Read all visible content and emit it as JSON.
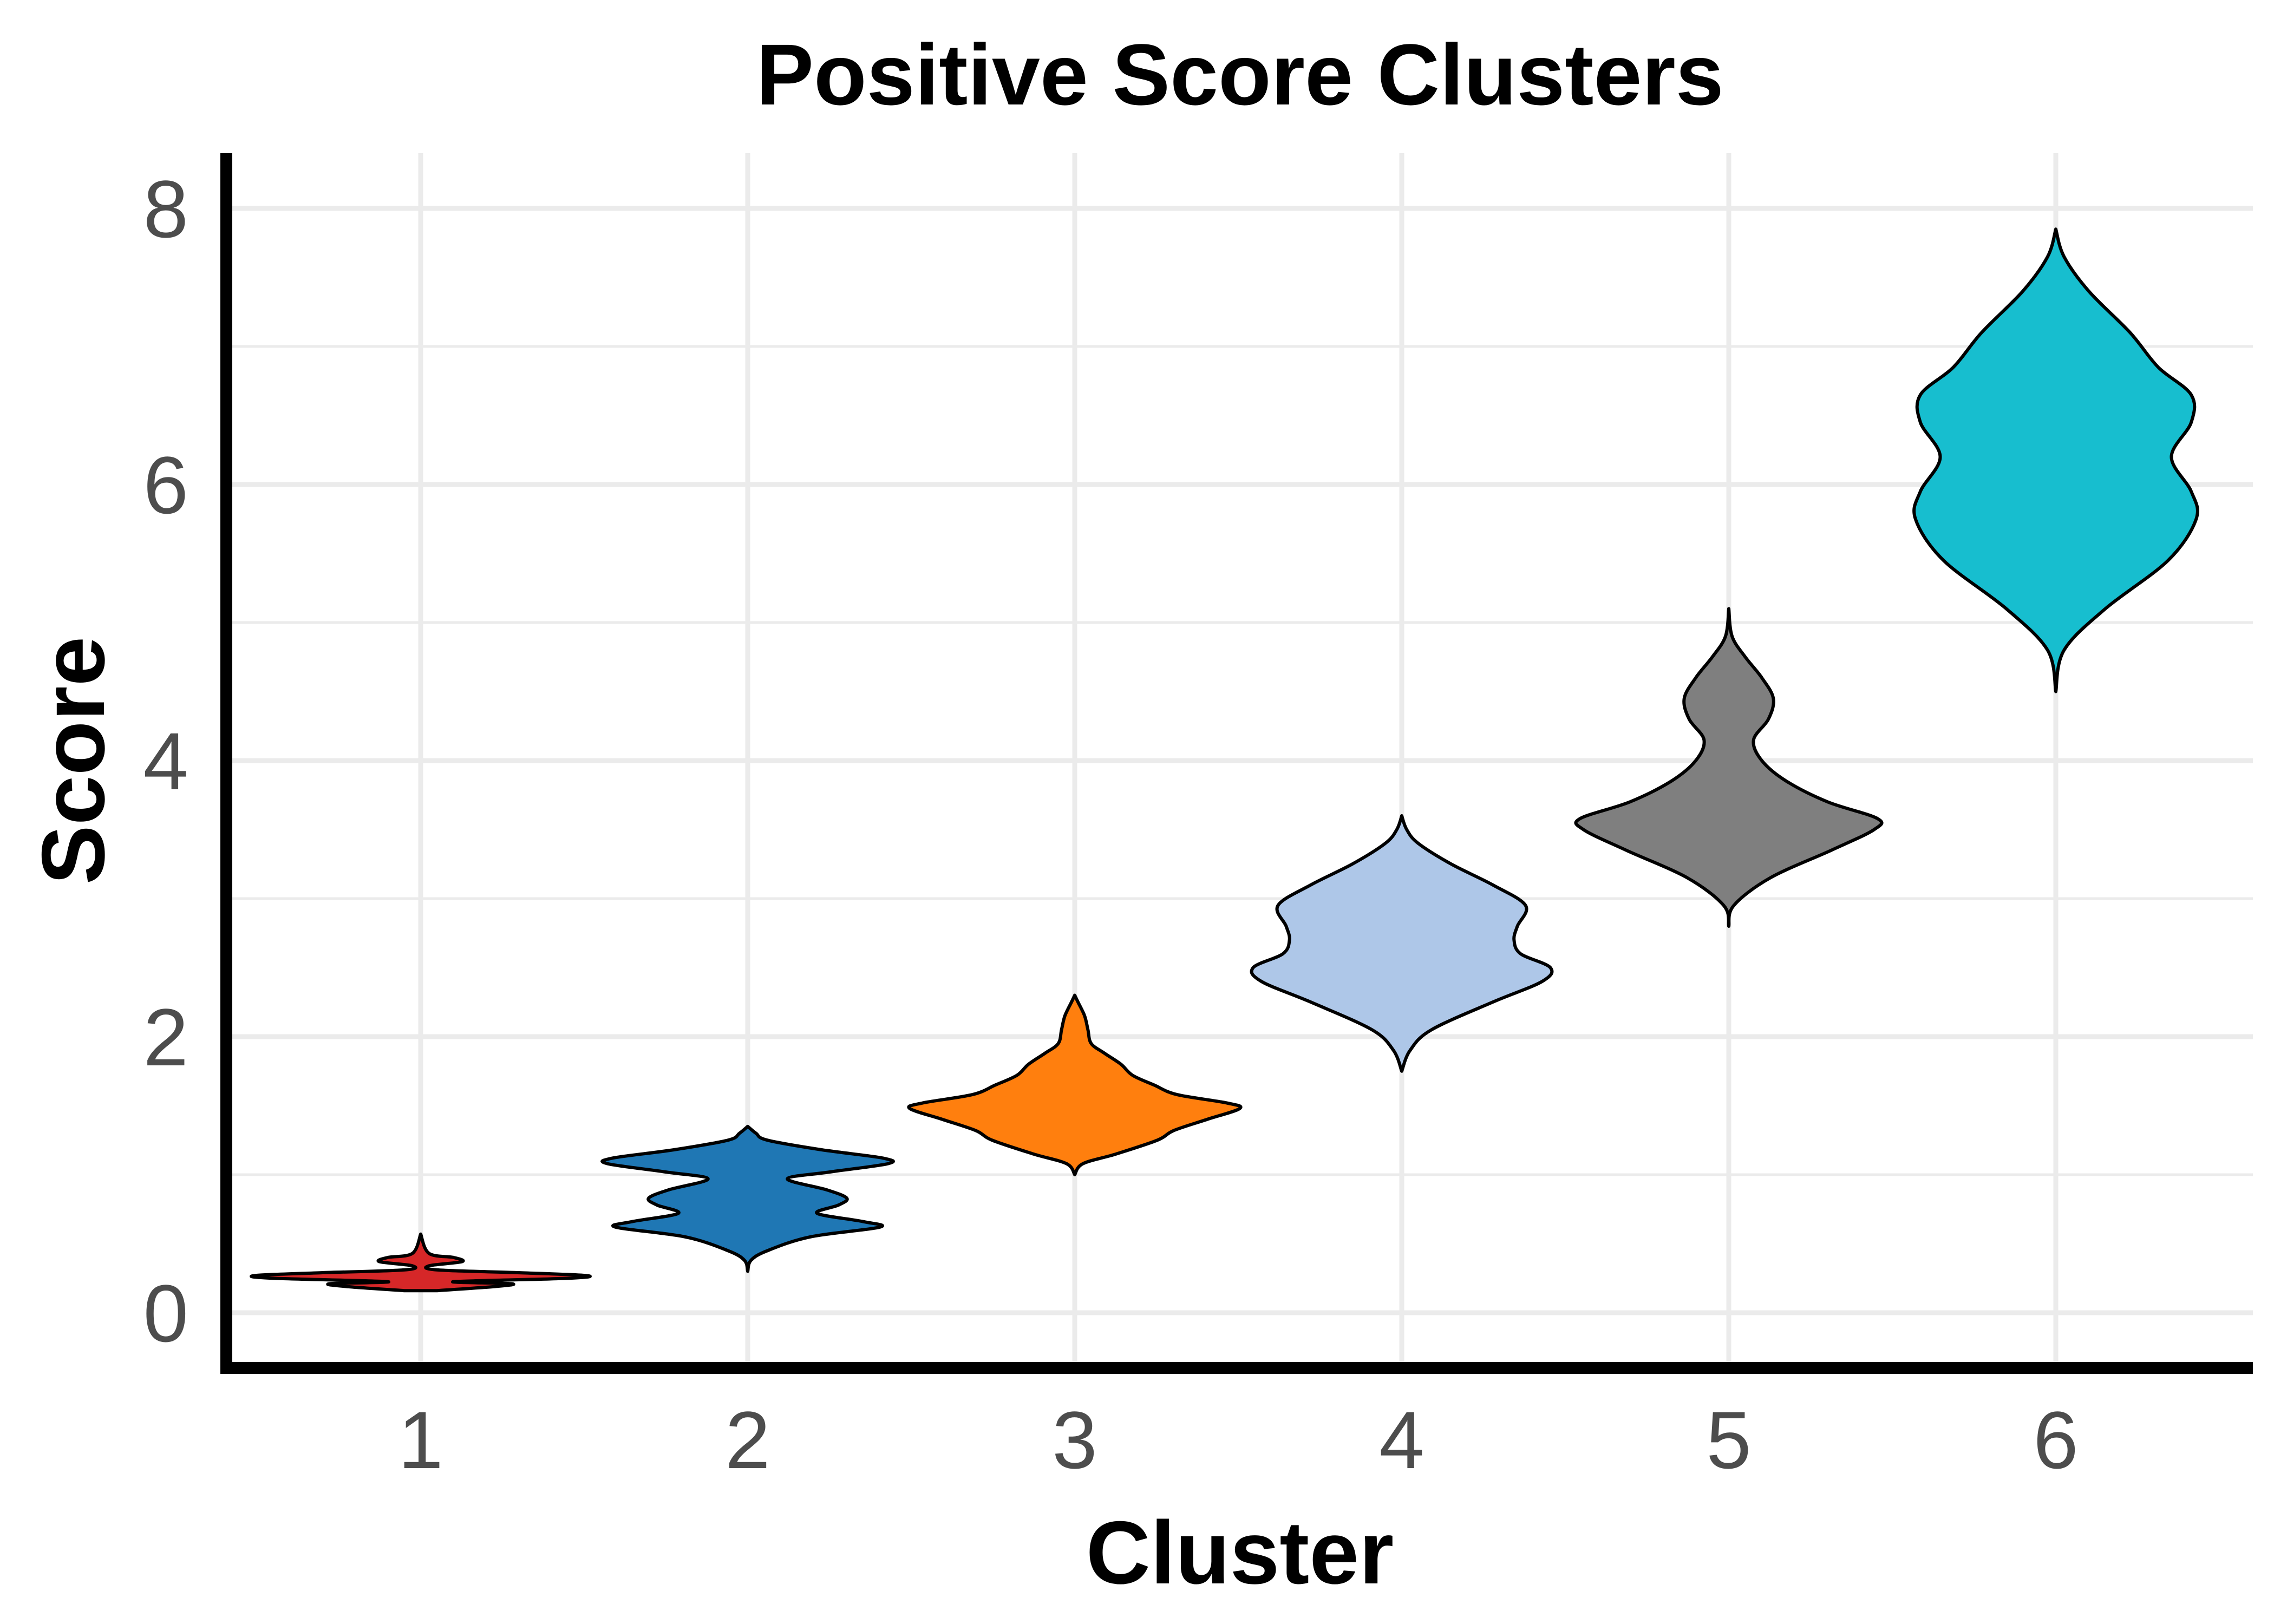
{
  "chart_data": {
    "type": "violin",
    "title": "Positive Score Clusters",
    "xlabel": "Cluster",
    "ylabel": "Score",
    "categories": [
      "1",
      "2",
      "3",
      "4",
      "5",
      "6"
    ],
    "y_ticks": [
      "0",
      "2",
      "4",
      "6",
      "8"
    ],
    "ylim": [
      -0.7,
      8.4
    ],
    "grid": true,
    "legend": "none",
    "series": [
      {
        "category": "1",
        "color": "#d62728",
        "min": 0.16,
        "max": 0.57,
        "median": 0.26,
        "profile": [
          [
            0.16,
            0.1
          ],
          [
            0.19,
            0.45
          ],
          [
            0.21,
            0.55
          ],
          [
            0.225,
            0.2
          ],
          [
            0.25,
            0.9
          ],
          [
            0.27,
            1.0
          ],
          [
            0.29,
            0.6
          ],
          [
            0.31,
            0.1
          ],
          [
            0.34,
            0.05
          ],
          [
            0.37,
            0.25
          ],
          [
            0.4,
            0.2
          ],
          [
            0.43,
            0.05
          ],
          [
            0.57,
            0.0
          ]
        ]
      },
      {
        "category": "2",
        "color": "#1f77b4",
        "min": 0.3,
        "max": 1.35,
        "median": 0.85,
        "profile": [
          [
            0.3,
            0.0
          ],
          [
            0.38,
            0.02
          ],
          [
            0.45,
            0.12
          ],
          [
            0.55,
            0.38
          ],
          [
            0.62,
            0.8
          ],
          [
            0.66,
            0.7
          ],
          [
            0.72,
            0.42
          ],
          [
            0.78,
            0.55
          ],
          [
            0.83,
            0.6
          ],
          [
            0.89,
            0.48
          ],
          [
            0.97,
            0.24
          ],
          [
            1.02,
            0.5
          ],
          [
            1.08,
            0.85
          ],
          [
            1.12,
            0.82
          ],
          [
            1.18,
            0.45
          ],
          [
            1.25,
            0.12
          ],
          [
            1.3,
            0.05
          ],
          [
            1.35,
            0.0
          ]
        ]
      },
      {
        "category": "3",
        "color": "#ff7f0e",
        "min": 1.0,
        "max": 2.3,
        "median": 1.55,
        "profile": [
          [
            1.0,
            0.0
          ],
          [
            1.08,
            0.05
          ],
          [
            1.15,
            0.25
          ],
          [
            1.25,
            0.5
          ],
          [
            1.32,
            0.6
          ],
          [
            1.4,
            0.8
          ],
          [
            1.48,
            1.0
          ],
          [
            1.52,
            0.92
          ],
          [
            1.58,
            0.62
          ],
          [
            1.65,
            0.48
          ],
          [
            1.72,
            0.35
          ],
          [
            1.8,
            0.28
          ],
          [
            1.88,
            0.18
          ],
          [
            1.95,
            0.1
          ],
          [
            2.05,
            0.08
          ],
          [
            2.15,
            0.06
          ],
          [
            2.25,
            0.02
          ],
          [
            2.3,
            0.0
          ]
        ]
      },
      {
        "category": "4",
        "color": "#aec7e8",
        "min": 1.75,
        "max": 3.6,
        "median": 2.7,
        "profile": [
          [
            1.75,
            0.0
          ],
          [
            1.9,
            0.05
          ],
          [
            2.05,
            0.18
          ],
          [
            2.25,
            0.55
          ],
          [
            2.4,
            0.85
          ],
          [
            2.5,
            0.9
          ],
          [
            2.6,
            0.72
          ],
          [
            2.7,
            0.68
          ],
          [
            2.8,
            0.7
          ],
          [
            2.95,
            0.75
          ],
          [
            3.1,
            0.55
          ],
          [
            3.25,
            0.3
          ],
          [
            3.4,
            0.1
          ],
          [
            3.5,
            0.03
          ],
          [
            3.6,
            0.0
          ]
        ]
      },
      {
        "category": "5",
        "color": "#7f7f7f",
        "min": 2.8,
        "max": 5.1,
        "median": 3.95,
        "profile": [
          [
            2.8,
            0.0
          ],
          [
            2.95,
            0.03
          ],
          [
            3.15,
            0.25
          ],
          [
            3.35,
            0.62
          ],
          [
            3.5,
            0.88
          ],
          [
            3.58,
            0.9
          ],
          [
            3.7,
            0.6
          ],
          [
            3.85,
            0.35
          ],
          [
            4.0,
            0.2
          ],
          [
            4.15,
            0.15
          ],
          [
            4.3,
            0.24
          ],
          [
            4.45,
            0.27
          ],
          [
            4.6,
            0.2
          ],
          [
            4.75,
            0.1
          ],
          [
            4.9,
            0.02
          ],
          [
            5.1,
            0.0
          ]
        ]
      },
      {
        "category": "6",
        "color": "#17becf",
        "min": 4.5,
        "max": 7.85,
        "median": 6.2,
        "profile": [
          [
            4.5,
            0.0
          ],
          [
            4.8,
            0.05
          ],
          [
            5.1,
            0.3
          ],
          [
            5.45,
            0.68
          ],
          [
            5.75,
            0.85
          ],
          [
            5.95,
            0.82
          ],
          [
            6.2,
            0.7
          ],
          [
            6.45,
            0.82
          ],
          [
            6.65,
            0.82
          ],
          [
            6.85,
            0.62
          ],
          [
            7.1,
            0.45
          ],
          [
            7.4,
            0.2
          ],
          [
            7.65,
            0.05
          ],
          [
            7.85,
            0.0
          ]
        ]
      }
    ]
  }
}
